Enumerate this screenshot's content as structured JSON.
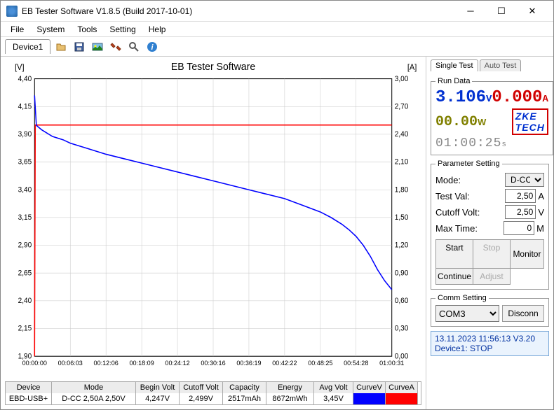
{
  "window": {
    "title": "EB Tester Software V1.8.5 (Build 2017-10-01)"
  },
  "menu": [
    "File",
    "System",
    "Tools",
    "Setting",
    "Help"
  ],
  "device_tab": "Device1",
  "chart": {
    "title": "EB Tester Software",
    "watermark": "ZKETECH",
    "y1_label": "[V]",
    "y2_label": "[A]",
    "y1_ticks": [
      "4,40",
      "4,15",
      "3,90",
      "3,65",
      "3,40",
      "3,15",
      "2,90",
      "2,65",
      "2,40",
      "2,15",
      "1,90"
    ],
    "y1_min": 1.9,
    "y1_max": 4.4,
    "y2_ticks": [
      "3,00",
      "2,70",
      "2,40",
      "2,10",
      "1,80",
      "1,50",
      "1,20",
      "0,90",
      "0,60",
      "0,30",
      "0,00"
    ],
    "y2_min": 0.0,
    "y2_max": 3.0,
    "x_ticks": [
      "00:00:00",
      "00:06:03",
      "00:12:06",
      "00:18:09",
      "00:24:12",
      "00:30:16",
      "00:36:19",
      "00:42:22",
      "00:48:25",
      "00:54:28",
      "01:00:31"
    ],
    "grid_color": "#c8c8c8",
    "axis_color": "#000000",
    "voltage_curve": {
      "color": "#0000ff",
      "width": 1.5,
      "points": [
        [
          0.0,
          4.25
        ],
        [
          0.005,
          3.98
        ],
        [
          0.02,
          3.94
        ],
        [
          0.05,
          3.88
        ],
        [
          0.08,
          3.85
        ],
        [
          0.1,
          3.82
        ],
        [
          0.13,
          3.79
        ],
        [
          0.15,
          3.77
        ],
        [
          0.2,
          3.72
        ],
        [
          0.25,
          3.68
        ],
        [
          0.3,
          3.64
        ],
        [
          0.35,
          3.6
        ],
        [
          0.4,
          3.56
        ],
        [
          0.45,
          3.52
        ],
        [
          0.5,
          3.48
        ],
        [
          0.55,
          3.44
        ],
        [
          0.6,
          3.4
        ],
        [
          0.65,
          3.36
        ],
        [
          0.7,
          3.32
        ],
        [
          0.75,
          3.26
        ],
        [
          0.8,
          3.2
        ],
        [
          0.83,
          3.15
        ],
        [
          0.86,
          3.09
        ],
        [
          0.88,
          3.04
        ],
        [
          0.9,
          2.98
        ],
        [
          0.92,
          2.9
        ],
        [
          0.94,
          2.8
        ],
        [
          0.96,
          2.68
        ],
        [
          0.98,
          2.58
        ],
        [
          1.0,
          2.5
        ]
      ]
    },
    "current_curve_a": {
      "color": "#ff0000",
      "width": 1.5,
      "points_a": [
        [
          0.0,
          0.0
        ],
        [
          0.002,
          2.5
        ],
        [
          1.0,
          2.5
        ]
      ]
    }
  },
  "table": {
    "headers": [
      "Device",
      "Mode",
      "Begin Volt",
      "Cutoff Volt",
      "Capacity",
      "Energy",
      "Avg Volt",
      "CurveV",
      "CurveA"
    ],
    "row": {
      "device": "EBD-USB+",
      "mode": "D-CC 2,50A 2,50V",
      "begin": "4,247V",
      "cutoff": "2,499V",
      "capacity": "2517mAh",
      "energy": "8672mWh",
      "avg": "3,45V",
      "curveV_color": "#0000ff",
      "curveA_color": "#ff0000"
    }
  },
  "rightTabs": [
    "Single Test",
    "Auto Test"
  ],
  "runData": {
    "legend": "Run Data",
    "voltage": "3.106",
    "voltage_unit": "V",
    "current": "0.000",
    "current_unit": "A",
    "power": "00.00",
    "power_unit": "W",
    "brand": "ZKE TECH",
    "elapsed": "01:00:25",
    "elapsed_unit": "s"
  },
  "param": {
    "legend": "Parameter Setting",
    "mode_label": "Mode:",
    "mode_value": "D-CC",
    "testval_label": "Test Val:",
    "testval_value": "2,50",
    "testval_unit": "A",
    "cutoff_label": "Cutoff Volt:",
    "cutoff_value": "2,50",
    "cutoff_unit": "V",
    "maxtime_label": "Max Time:",
    "maxtime_value": "0",
    "maxtime_unit": "M",
    "buttons": {
      "start": "Start",
      "stop": "Stop",
      "monitor": "Monitor",
      "continue": "Continue",
      "adjust": "Adjust"
    }
  },
  "comm": {
    "legend": "Comm Setting",
    "port": "COM3",
    "disconn": "Disconn"
  },
  "status": {
    "line1": "13.11.2023 11:56:13  V3.20",
    "line2": "Device1: STOP"
  }
}
